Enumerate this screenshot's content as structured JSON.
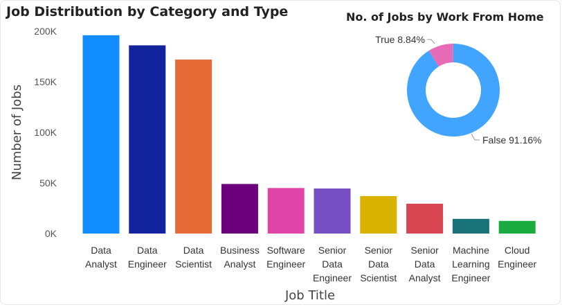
{
  "chart_data": [
    {
      "type": "bar",
      "title": "Job Distribution by Category and Type",
      "xlabel": "Job Title",
      "ylabel": "Number of Jobs",
      "ylim": [
        0,
        200000
      ],
      "yticks": [
        "0K",
        "50K",
        "100K",
        "150K",
        "200K"
      ],
      "ytick_values": [
        0,
        50000,
        100000,
        150000,
        200000
      ],
      "grid": false,
      "categories": [
        [
          "Data",
          "Analyst"
        ],
        [
          "Data",
          "Engineer"
        ],
        [
          "Data",
          "Scientist"
        ],
        [
          "Business",
          "Analyst"
        ],
        [
          "Software",
          "Engineer"
        ],
        [
          "Senior",
          "Data",
          "Engineer"
        ],
        [
          "Senior",
          "Data",
          "Scientist"
        ],
        [
          "Senior",
          "Data",
          "Analyst"
        ],
        [
          "Machine",
          "Learning",
          "Engineer"
        ],
        [
          "Cloud",
          "Engineer"
        ]
      ],
      "values": [
        196000,
        186000,
        172000,
        49000,
        45000,
        44500,
        37000,
        29500,
        14500,
        12500
      ],
      "colors": [
        "#118DFF",
        "#12239E",
        "#E66C37",
        "#6B007B",
        "#E044A7",
        "#744EC2",
        "#D9B300",
        "#D64550",
        "#197278",
        "#1AAB40"
      ]
    },
    {
      "type": "pie",
      "title": "No. of Jobs by Work From Home",
      "donut": true,
      "slices": [
        {
          "label": "True 8.84%",
          "value": 8.84,
          "color": "#E66CB8"
        },
        {
          "label": "False 91.16%",
          "value": 91.16,
          "color": "#41A4FF"
        }
      ]
    }
  ]
}
